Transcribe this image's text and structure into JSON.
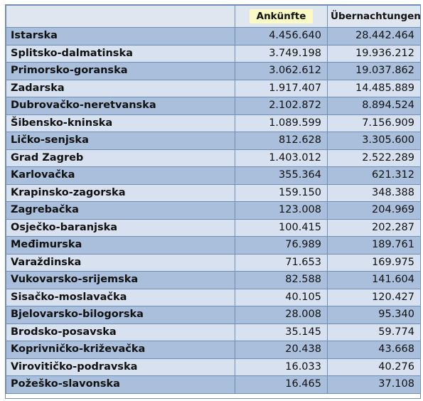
{
  "table": {
    "headers": [
      "",
      "Ankünfte",
      "Übernachtungen"
    ],
    "rows": [
      {
        "name": "Istarska",
        "ankuenfte": "4.456.640",
        "uebernachtungen": "28.442.464"
      },
      {
        "name": "Splitsko-dalmatinska",
        "ankuenfte": "3.749.198",
        "uebernachtungen": "19.936.212"
      },
      {
        "name": "Primorsko-goranska",
        "ankuenfte": "3.062.612",
        "uebernachtungen": "19.037.862"
      },
      {
        "name": "Zadarska",
        "ankuenfte": "1.917.407",
        "uebernachtungen": "14.485.889"
      },
      {
        "name": "Dubrovačko-neretvanska",
        "ankuenfte": "2.102.872",
        "uebernachtungen": "8.894.524"
      },
      {
        "name": "Šibensko-kninska",
        "ankuenfte": "1.089.599",
        "uebernachtungen": "7.156.909"
      },
      {
        "name": "Ličko-senjska",
        "ankuenfte": "812.628",
        "uebernachtungen": "3.305.600"
      },
      {
        "name": "Grad Zagreb",
        "ankuenfte": "1.403.012",
        "uebernachtungen": "2.522.289"
      },
      {
        "name": "Karlovačka",
        "ankuenfte": "355.364",
        "uebernachtungen": "621.312"
      },
      {
        "name": "Krapinsko-zagorska",
        "ankuenfte": "159.150",
        "uebernachtungen": "348.388"
      },
      {
        "name": "Zagrebačka",
        "ankuenfte": "123.008",
        "uebernachtungen": "204.969"
      },
      {
        "name": "Osječko-baranjska",
        "ankuenfte": "100.415",
        "uebernachtungen": "202.287"
      },
      {
        "name": "Međimurska",
        "ankuenfte": "76.989",
        "uebernachtungen": "189.761"
      },
      {
        "name": "Varaždinska",
        "ankuenfte": "71.653",
        "uebernachtungen": "169.975"
      },
      {
        "name": "Vukovarsko-srijemska",
        "ankuenfte": "82.588",
        "uebernachtungen": "141.604"
      },
      {
        "name": "Sisačko-moslavačka",
        "ankuenfte": "40.105",
        "uebernachtungen": "120.427"
      },
      {
        "name": "Bjelovarsko-bilogorska",
        "ankuenfte": "28.008",
        "uebernachtungen": "95.340"
      },
      {
        "name": "Brodsko-posavska",
        "ankuenfte": "35.145",
        "uebernachtungen": "59.774"
      },
      {
        "name": "Koprivničko-križevačka",
        "ankuenfte": "20.438",
        "uebernachtungen": "43.668"
      },
      {
        "name": "Virovitičko-podravska",
        "ankuenfte": "16.033",
        "uebernachtungen": "40.276"
      },
      {
        "name": "Požeško-slavonska",
        "ankuenfte": "16.465",
        "uebernachtungen": "37.108"
      }
    ]
  }
}
